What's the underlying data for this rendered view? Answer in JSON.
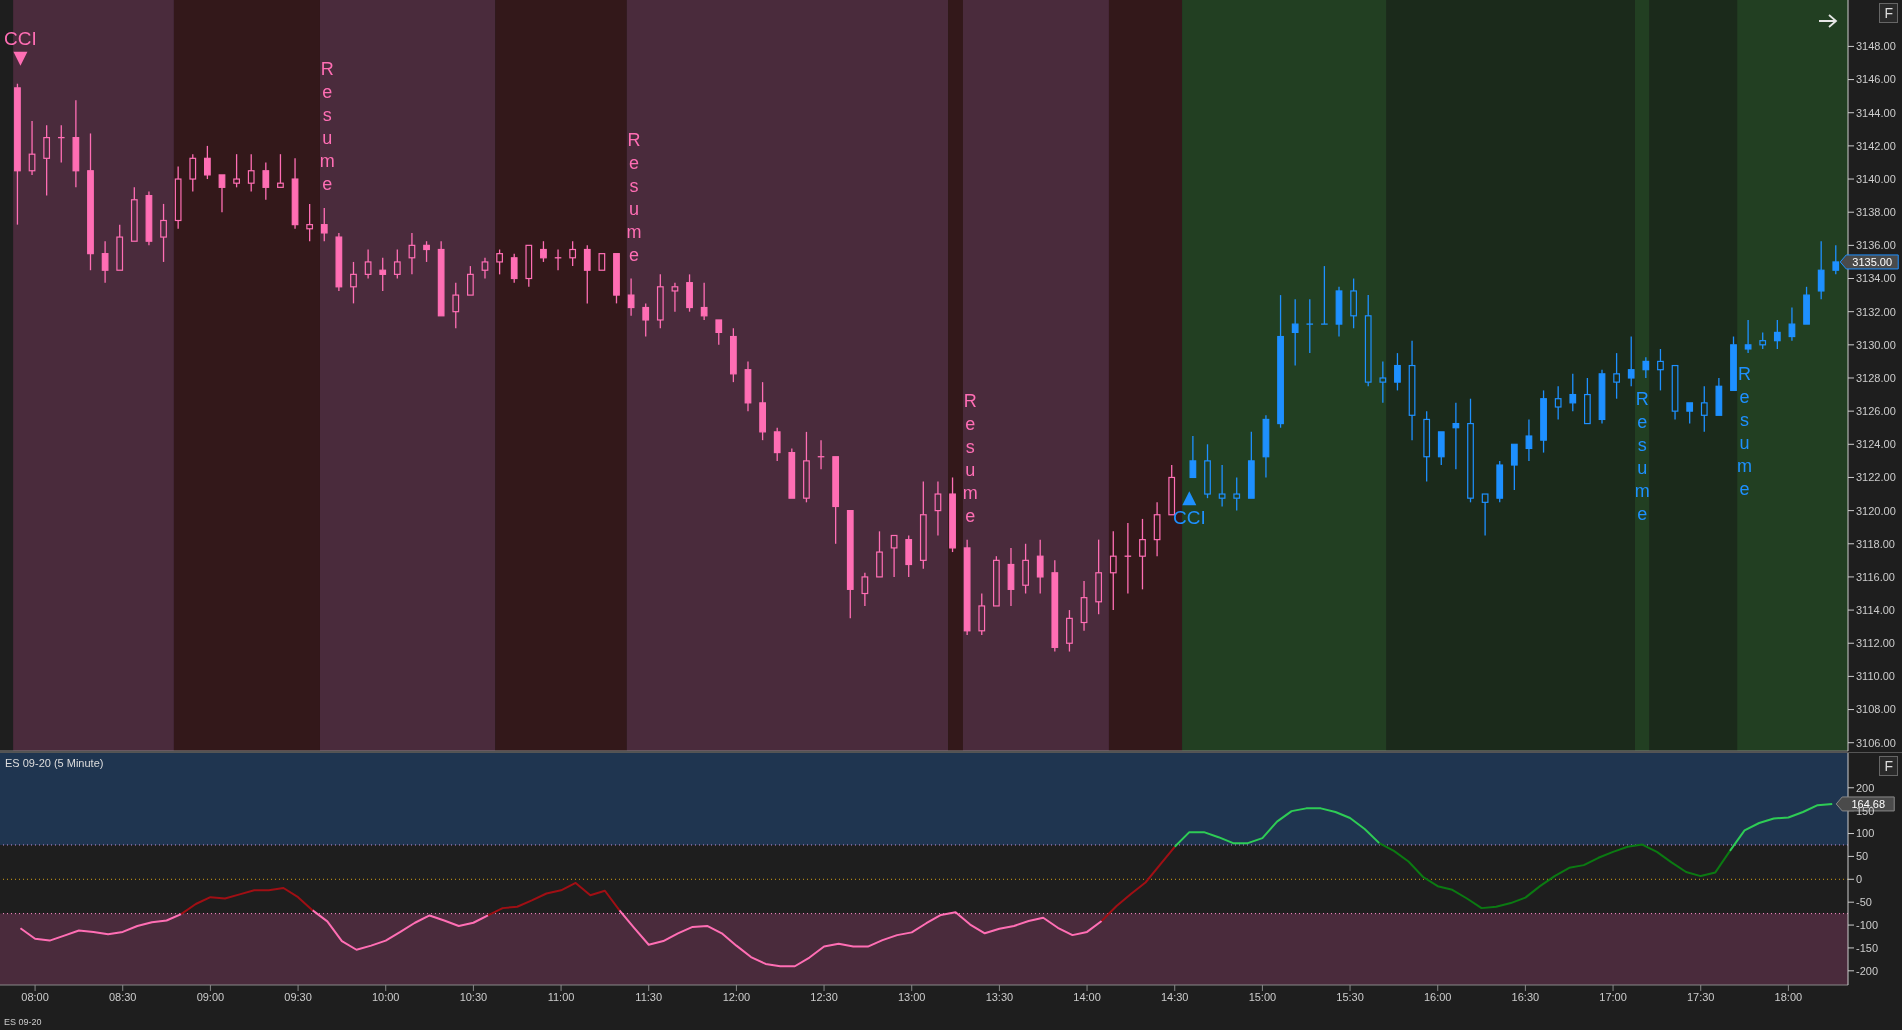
{
  "chart_data": [
    {
      "type": "candlestick",
      "xlim": [
        7.8,
        18.34
      ],
      "ylim": [
        3105.5,
        3150.8
      ],
      "tick_labels": "y",
      "yticks": [
        {
          "value": 3106,
          "label": "3106.00"
        },
        {
          "value": 3108,
          "label": "3108.00"
        },
        {
          "value": 3110,
          "label": "3110.00"
        },
        {
          "value": 3112,
          "label": "3112.00"
        },
        {
          "value": 3114,
          "label": "3114.00"
        },
        {
          "value": 3116,
          "label": "3116.00"
        },
        {
          "value": 3118,
          "label": "3118.00"
        },
        {
          "value": 3120,
          "label": "3120.00"
        },
        {
          "value": 3122,
          "label": "3122.00"
        },
        {
          "value": 3124,
          "label": "3124.00"
        },
        {
          "value": 3126,
          "label": "3126.00"
        },
        {
          "value": 3128,
          "label": "3128.00"
        },
        {
          "value": 3130,
          "label": "3130.00"
        },
        {
          "value": 3132,
          "label": "3132.00"
        },
        {
          "value": 3134,
          "label": "3134.00"
        },
        {
          "value": 3136,
          "label": "3136.00"
        },
        {
          "value": 3138,
          "label": "3138.00"
        },
        {
          "value": 3140,
          "label": "3140.00"
        },
        {
          "value": 3142,
          "label": "3142.00"
        },
        {
          "value": 3144,
          "label": "3144.00"
        },
        {
          "value": 3146,
          "label": "3146.00"
        },
        {
          "value": 3148,
          "label": "3148.00"
        }
      ],
      "bands": [
        {
          "axis": "x",
          "from": 7.875,
          "to": 8.792,
          "color": "#4a2b3c"
        },
        {
          "axis": "x",
          "from": 8.792,
          "to": 9.625,
          "color": "#33181a"
        },
        {
          "axis": "x",
          "from": 9.625,
          "to": 10.625,
          "color": "#4a2b3c"
        },
        {
          "axis": "x",
          "from": 10.625,
          "to": 11.375,
          "color": "#33181a"
        },
        {
          "axis": "x",
          "from": 11.375,
          "to": 13.208,
          "color": "#4a2b3c"
        },
        {
          "axis": "x",
          "from": 13.208,
          "to": 13.292,
          "color": "#33181a"
        },
        {
          "axis": "x",
          "from": 13.292,
          "to": 14.125,
          "color": "#4a2b3c"
        },
        {
          "axis": "x",
          "from": 14.125,
          "to": 14.542,
          "color": "#33181a"
        },
        {
          "axis": "x",
          "from": 14.542,
          "to": 15.708,
          "color": "#223f22"
        },
        {
          "axis": "x",
          "from": 15.708,
          "to": 17.125,
          "color": "#1b2a1b"
        },
        {
          "axis": "x",
          "from": 17.125,
          "to": 17.208,
          "color": "#223f22"
        },
        {
          "axis": "x",
          "from": 17.208,
          "to": 17.708,
          "color": "#1b2a1b"
        },
        {
          "axis": "x",
          "from": 17.708,
          "to": 18.34,
          "color": "#223f22"
        }
      ],
      "annotations": [
        "F"
      ],
      "series": [
        {
          "color": "#ff6eb4",
          "x": [
            7.9167,
            8,
            8.0833,
            8.1667,
            8.25,
            8.3333,
            8.4167,
            8.5,
            8.5833,
            8.6667,
            8.75,
            8.8333,
            8.9167,
            9,
            9.0833,
            9.1667,
            9.25,
            9.3333,
            9.4167,
            9.5,
            9.5833,
            9.6667,
            9.75,
            9.8333,
            9.9167,
            10,
            10.0833,
            10.1667,
            10.25,
            10.3333,
            10.4167,
            10.5,
            10.5833,
            10.6667,
            10.75,
            10.8333,
            10.9167,
            11,
            11.0833,
            11.1667,
            11.25,
            11.3333,
            11.4167,
            11.5,
            11.5833,
            11.6667,
            11.75,
            11.8333,
            11.9167,
            12,
            12.0833,
            12.1667,
            12.25,
            12.3333,
            12.4167,
            12.5,
            12.5833,
            12.6667,
            12.75,
            12.8333,
            12.9167,
            13,
            13.0833,
            13.1667,
            13.25,
            13.3333,
            13.4167,
            13.5,
            13.5833,
            13.6667,
            13.75,
            13.8333,
            13.9167,
            14,
            14.0833,
            14.1667,
            14.25,
            14.3333,
            14.4167,
            14.5
          ],
          "ohlc": [
            [
              3145.5,
              3145.75,
              3137.25,
              3140.5
            ],
            [
              3140.5,
              3143.5,
              3140.25,
              3141.5
            ],
            [
              3141.25,
              3143.25,
              3139,
              3142.5
            ],
            [
              3142.5,
              3143.25,
              3141,
              3142.5
            ],
            [
              3142.5,
              3144.75,
              3139.5,
              3140.5
            ],
            [
              3140.5,
              3142.75,
              3134.5,
              3135.5
            ],
            [
              3135.5,
              3136.25,
              3133.75,
              3134.5
            ],
            [
              3134.5,
              3137.25,
              3134.5,
              3136.5
            ],
            [
              3136.25,
              3139.5,
              3136.25,
              3138.75
            ],
            [
              3139,
              3139.25,
              3136,
              3136.25
            ],
            [
              3136.5,
              3138.5,
              3135,
              3137.5
            ],
            [
              3137.5,
              3140.75,
              3137,
              3140
            ],
            [
              3140,
              3141.5,
              3139.25,
              3141.25
            ],
            [
              3141.25,
              3142,
              3140,
              3140.25
            ],
            [
              3140.25,
              3140.25,
              3138,
              3139.5
            ],
            [
              3139.75,
              3141.5,
              3139.5,
              3140
            ],
            [
              3139.75,
              3141.5,
              3139.25,
              3140.5
            ],
            [
              3140.5,
              3141,
              3138.75,
              3139.5
            ],
            [
              3139.5,
              3141.5,
              3139.5,
              3139.75
            ],
            [
              3140,
              3141.25,
              3137,
              3137.25
            ],
            [
              3137,
              3138.5,
              3136.25,
              3137.25
            ],
            [
              3137.25,
              3138.25,
              3136.25,
              3136.75
            ],
            [
              3136.5,
              3136.75,
              3133.25,
              3133.5
            ],
            [
              3133.5,
              3135,
              3132.5,
              3134.25
            ],
            [
              3134.25,
              3135.75,
              3134,
              3135
            ],
            [
              3134.5,
              3135.25,
              3133.25,
              3134.25
            ],
            [
              3134.25,
              3135.75,
              3134,
              3135
            ],
            [
              3135.25,
              3136.75,
              3134.25,
              3136
            ],
            [
              3136,
              3136.25,
              3135,
              3135.75
            ],
            [
              3135.75,
              3136.25,
              3131.75,
              3131.75
            ],
            [
              3132,
              3133.75,
              3131,
              3133
            ],
            [
              3133,
              3134.75,
              3133,
              3134.25
            ],
            [
              3134.5,
              3135.25,
              3134,
              3135
            ],
            [
              3135,
              3135.75,
              3134.25,
              3135.5
            ],
            [
              3135.25,
              3135.5,
              3133.75,
              3134
            ],
            [
              3134,
              3136,
              3133.5,
              3136
            ],
            [
              3135.75,
              3136.25,
              3135,
              3135.25
            ],
            [
              3135.25,
              3135.75,
              3134.5,
              3135.25
            ],
            [
              3135.25,
              3136.25,
              3134.75,
              3135.75
            ],
            [
              3135.75,
              3136,
              3132.5,
              3134.5
            ],
            [
              3134.5,
              3135.5,
              3134.5,
              3135.5
            ],
            [
              3135.5,
              3135.5,
              3132.5,
              3133
            ],
            [
              3133,
              3134,
              3131.75,
              3132.25
            ],
            [
              3132.25,
              3132.5,
              3130.5,
              3131.5
            ],
            [
              3131.5,
              3134.25,
              3131,
              3133.5
            ],
            [
              3133.25,
              3133.75,
              3132,
              3133.5
            ],
            [
              3133.75,
              3134.25,
              3132,
              3132.25
            ],
            [
              3132.25,
              3133.75,
              3131.5,
              3131.75
            ],
            [
              3131.5,
              3131.5,
              3130,
              3130.75
            ],
            [
              3130.5,
              3131,
              3127.75,
              3128.25
            ],
            [
              3128.5,
              3129,
              3126,
              3126.5
            ],
            [
              3126.5,
              3127.75,
              3124.25,
              3124.75
            ],
            [
              3124.75,
              3125,
              3123,
              3123.5
            ],
            [
              3123.5,
              3123.75,
              3120.75,
              3120.75
            ],
            [
              3120.75,
              3124.75,
              3120.5,
              3123
            ],
            [
              3123.25,
              3124.25,
              3122.5,
              3123.25
            ],
            [
              3123.25,
              3123.25,
              3118,
              3120.25
            ],
            [
              3120,
              3120,
              3113.5,
              3115.25
            ],
            [
              3115,
              3116.25,
              3114.25,
              3116
            ],
            [
              3116,
              3118.75,
              3116,
              3117.5
            ],
            [
              3117.75,
              3118.5,
              3116,
              3118.5
            ],
            [
              3118.25,
              3118.5,
              3116,
              3116.75
            ],
            [
              3117,
              3121.75,
              3116.5,
              3119.75
            ],
            [
              3120,
              3121.75,
              3118.5,
              3121
            ],
            [
              3121,
              3122,
              3117.5,
              3117.75
            ],
            [
              3117.75,
              3118.25,
              3112.5,
              3112.75
            ],
            [
              3112.75,
              3115,
              3112.5,
              3114.25
            ],
            [
              3114.25,
              3117.25,
              3114.25,
              3117
            ],
            [
              3116.75,
              3117.75,
              3114.25,
              3115.25
            ],
            [
              3115.5,
              3118,
              3115,
              3117
            ],
            [
              3117.25,
              3118.25,
              3115,
              3116
            ],
            [
              3116.25,
              3117,
              3111.5,
              3111.75
            ],
            [
              3112,
              3114,
              3111.5,
              3113.5
            ],
            [
              3113.25,
              3115.75,
              3112.75,
              3114.75
            ],
            [
              3114.5,
              3118.25,
              3113.75,
              3116.25
            ],
            [
              3116.25,
              3118.75,
              3114,
              3117.25
            ],
            [
              3117.25,
              3119.25,
              3115,
              3117.25
            ],
            [
              3117.25,
              3119.5,
              3115.25,
              3118.25
            ],
            [
              3118.25,
              3120.5,
              3117.25,
              3119.75
            ],
            [
              3119.75,
              3122.75,
              3119.75,
              3122
            ]
          ],
          "value_labels": [
            null,
            null,
            null,
            null,
            null,
            null,
            null,
            null,
            null,
            null,
            null,
            null,
            null,
            null,
            null,
            null,
            null,
            null,
            null,
            null,
            null,
            "Resume",
            null,
            null,
            null,
            null,
            null,
            null,
            null,
            null,
            null,
            null,
            null,
            null,
            null,
            null,
            null,
            null,
            null,
            null,
            null,
            null,
            "Resume",
            null,
            null,
            null,
            null,
            null,
            null,
            null,
            null,
            null,
            null,
            null,
            null,
            null,
            null,
            null,
            null,
            null,
            null,
            null,
            null,
            null,
            null,
            "Resume",
            null,
            null,
            null,
            null,
            null,
            null,
            null,
            null,
            null,
            null,
            null,
            null,
            null,
            null
          ]
        },
        {
          "color": "#1e90ff",
          "x": [
            14.5833,
            14.6667,
            14.75,
            14.8333,
            14.9167,
            15,
            15.0833,
            15.1667,
            15.25,
            15.3333,
            15.4167,
            15.5,
            15.5833,
            15.6667,
            15.75,
            15.8333,
            15.9167,
            16,
            16.0833,
            16.1667,
            16.25,
            16.3333,
            16.4167,
            16.5,
            16.5833,
            16.6667,
            16.75,
            16.8333,
            16.9167,
            17,
            17.0833,
            17.1667,
            17.25,
            17.3333,
            17.4167,
            17.5,
            17.5833,
            17.6667,
            17.75,
            17.8333,
            17.9167,
            18,
            18.0833,
            18.1667,
            18.25
          ],
          "ohlc": [
            [
              3122,
              3124.5,
              3122,
              3123
            ],
            [
              3123,
              3124,
              3120.75,
              3121
            ],
            [
              3121,
              3122.75,
              3120.25,
              3120.75
            ],
            [
              3121,
              3122,
              3120,
              3120.75
            ],
            [
              3120.75,
              3124.75,
              3120.75,
              3123
            ],
            [
              3123.25,
              3125.75,
              3122,
              3125.5
            ],
            [
              3125.25,
              3133,
              3125,
              3130.5
            ],
            [
              3130.75,
              3132.75,
              3128.75,
              3131.25
            ],
            [
              3131.25,
              3132.75,
              3129.5,
              3131.25
            ],
            [
              3131.25,
              3134.75,
              3131.25,
              3131.25
            ],
            [
              3131.25,
              3133.5,
              3130.5,
              3133.25
            ],
            [
              3133.25,
              3134,
              3131,
              3131.75
            ],
            [
              3131.75,
              3133,
              3127.5,
              3127.75
            ],
            [
              3128,
              3129,
              3126.5,
              3127.75
            ],
            [
              3127.75,
              3129.5,
              3127.25,
              3128.75
            ],
            [
              3128.75,
              3130.25,
              3124.25,
              3125.75
            ],
            [
              3125.5,
              3126,
              3121.75,
              3123.25
            ],
            [
              3123.25,
              3124.75,
              3122.75,
              3124.75
            ],
            [
              3125,
              3126.5,
              3122.5,
              3125.25
            ],
            [
              3125.25,
              3126.75,
              3120.5,
              3120.75
            ],
            [
              3121,
              3121,
              3118.5,
              3120.5
            ],
            [
              3120.75,
              3123,
              3120.5,
              3122.75
            ],
            [
              3122.75,
              3124,
              3121.25,
              3124
            ],
            [
              3123.75,
              3125.5,
              3123,
              3124.5
            ],
            [
              3124.25,
              3127.25,
              3123.5,
              3126.75
            ],
            [
              3126.75,
              3127.5,
              3125.5,
              3126.25
            ],
            [
              3126.5,
              3128.25,
              3126,
              3127
            ],
            [
              3127,
              3128,
              3125.25,
              3125.25
            ],
            [
              3125.5,
              3128.5,
              3125.25,
              3128.25
            ],
            [
              3128.25,
              3129.5,
              3126.75,
              3127.75
            ],
            [
              3128,
              3130.5,
              3127.5,
              3128.5
            ],
            [
              3128.5,
              3129.25,
              3128,
              3129
            ],
            [
              3129,
              3129.75,
              3127.25,
              3128.5
            ],
            [
              3128.75,
              3128.75,
              3125.5,
              3126
            ],
            [
              3126,
              3126.5,
              3125.25,
              3126.5
            ],
            [
              3126.5,
              3127.5,
              3124.75,
              3125.75
            ],
            [
              3125.75,
              3128,
              3125.75,
              3127.5
            ],
            [
              3127.25,
              3130.5,
              3127.25,
              3130
            ],
            [
              3129.75,
              3131.5,
              3129.5,
              3130
            ],
            [
              3130.25,
              3130.75,
              3129.75,
              3130
            ],
            [
              3130.25,
              3131.5,
              3129.75,
              3130.75
            ],
            [
              3130.5,
              3132.25,
              3130.25,
              3131.25
            ],
            [
              3131.25,
              3133.5,
              3131.25,
              3133
            ],
            [
              3133.25,
              3136.25,
              3132.75,
              3134.5
            ],
            [
              3134.5,
              3136,
              3134.25,
              3135
            ]
          ],
          "value_labels": [
            null,
            null,
            null,
            null,
            null,
            null,
            null,
            null,
            null,
            null,
            null,
            null,
            null,
            null,
            null,
            null,
            null,
            null,
            null,
            null,
            null,
            null,
            null,
            null,
            null,
            null,
            null,
            null,
            null,
            null,
            null,
            "Resume",
            null,
            null,
            null,
            null,
            null,
            null,
            "Resume",
            null,
            null,
            null,
            null,
            null,
            "3135.00"
          ]
        },
        {
          "type": "scatter",
          "color": "#ff6eb4",
          "marker": "triangle",
          "x": [
            7.9167
          ],
          "values": [
            3147.25
          ],
          "value_labels": [
            "CCI"
          ]
        },
        {
          "type": "scatter",
          "color": "#1e90ff",
          "marker": "triangle",
          "x": [
            14.5833
          ],
          "values": [
            3120.75
          ],
          "value_labels": [
            "CCI"
          ]
        }
      ]
    },
    {
      "type": "line",
      "title": "ES 09-20 (5 Minute)",
      "xlabel": "ES 09-20",
      "xlim": [
        7.8,
        18.34
      ],
      "ylim": [
        -231,
        276
      ],
      "xticks": [
        {
          "value": 8,
          "label": "08:00"
        },
        {
          "value": 8.5,
          "label": "08:30"
        },
        {
          "value": 9,
          "label": "09:00"
        },
        {
          "value": 9.5,
          "label": "09:30"
        },
        {
          "value": 10,
          "label": "10:00"
        },
        {
          "value": 10.5,
          "label": "10:30"
        },
        {
          "value": 11,
          "label": "11:00"
        },
        {
          "value": 11.5,
          "label": "11:30"
        },
        {
          "value": 12,
          "label": "12:00"
        },
        {
          "value": 12.5,
          "label": "12:30"
        },
        {
          "value": 13,
          "label": "13:00"
        },
        {
          "value": 13.5,
          "label": "13:30"
        },
        {
          "value": 14,
          "label": "14:00"
        },
        {
          "value": 14.5,
          "label": "14:30"
        },
        {
          "value": 15,
          "label": "15:00"
        },
        {
          "value": 15.5,
          "label": "15:30"
        },
        {
          "value": 16,
          "label": "16:00"
        },
        {
          "value": 16.5,
          "label": "16:30"
        },
        {
          "value": 17,
          "label": "17:00"
        },
        {
          "value": 17.5,
          "label": "17:30"
        },
        {
          "value": 18,
          "label": "18:00"
        }
      ],
      "yticks": [
        -200,
        -150,
        -100,
        -50,
        0,
        50,
        100,
        150,
        200
      ],
      "bands": [
        {
          "axis": "y",
          "from": 75,
          "to": 276,
          "color": "#1f3550"
        },
        {
          "axis": "y",
          "from": -231,
          "to": -75,
          "color": "#4a2b3c"
        }
      ],
      "ref_lines": [
        {
          "axis": "y",
          "value": 75,
          "color": "#c890d8",
          "line_style": "dotted"
        },
        {
          "axis": "y",
          "value": 0,
          "color": "#d4a017",
          "line_style": "dotted"
        },
        {
          "axis": "y",
          "value": -75,
          "color": "#ff8fc8",
          "line_style": "dotted"
        }
      ],
      "annotations": [
        "F"
      ],
      "series": [
        {
          "color": "#ff6eb4",
          "x": [
            7.9167,
            8,
            8.0833,
            8.1667,
            8.25,
            8.3333,
            8.4167,
            8.5,
            8.5833,
            8.6667,
            8.75,
            8.8333
          ],
          "values": [
            -107,
            -130,
            -134,
            -123,
            -112,
            -115,
            -120,
            -115,
            -102,
            -94,
            -90,
            -76
          ]
        },
        {
          "color": "#a00f14",
          "x": [
            8.8333,
            8.9167,
            9,
            9.0833,
            9.1667,
            9.25,
            9.3333,
            9.4167,
            9.5,
            9.5833
          ],
          "values": [
            -76,
            -54,
            -39,
            -42,
            -33,
            -24,
            -24,
            -19,
            -39,
            -68
          ]
        },
        {
          "color": "#ff6eb4",
          "x": [
            9.5833,
            9.6667,
            9.75,
            9.8333,
            9.9167,
            10,
            10.0833,
            10.1667,
            10.25,
            10.3333,
            10.4167,
            10.5,
            10.5833
          ],
          "values": [
            -68,
            -92,
            -135,
            -154,
            -145,
            -134,
            -115,
            -95,
            -79,
            -90,
            -102,
            -95,
            -79
          ]
        },
        {
          "color": "#a00f14",
          "x": [
            10.5833,
            10.6667,
            10.75,
            10.8333,
            10.9167,
            11,
            11.0833,
            11.1667,
            11.25,
            11.3333
          ],
          "values": [
            -79,
            -63,
            -60,
            -46,
            -31,
            -24,
            -8,
            -35,
            -25,
            -68
          ]
        },
        {
          "color": "#ff6eb4",
          "x": [
            11.3333,
            11.4167,
            11.5,
            11.5833,
            11.6667,
            11.75,
            11.8333,
            11.9167,
            12,
            12.0833,
            12.1667,
            12.25,
            12.3333,
            12.4167,
            12.5,
            12.5833,
            12.6667,
            12.75,
            12.8333,
            12.9167,
            13,
            13.0833,
            13.1667,
            13.25,
            13.3333,
            13.4167,
            13.5,
            13.5833,
            13.6667,
            13.75,
            13.8333,
            13.9167,
            14,
            14.0833
          ],
          "values": [
            -68,
            -106,
            -143,
            -135,
            -118,
            -104,
            -102,
            -118,
            -145,
            -170,
            -185,
            -190,
            -190,
            -171,
            -147,
            -141,
            -147,
            -147,
            -133,
            -122,
            -116,
            -96,
            -78,
            -72,
            -99,
            -118,
            -108,
            -102,
            -91,
            -84,
            -106,
            -122,
            -115,
            -91
          ]
        },
        {
          "color": "#a00f14",
          "x": [
            14.0833,
            14.1667,
            14.25,
            14.3333,
            14.4167,
            14.5
          ],
          "values": [
            -91,
            -59,
            -32,
            -7,
            32,
            71
          ]
        },
        {
          "color": "#2ecc55",
          "x": [
            14.5,
            14.5833,
            14.6667,
            14.75,
            14.8333,
            14.9167,
            15,
            15.0833,
            15.1667,
            15.25,
            15.3333,
            15.4167,
            15.5,
            15.5833,
            15.6667
          ],
          "values": [
            71,
            103,
            103,
            92,
            79,
            79,
            90,
            126,
            149,
            155,
            155,
            147,
            134,
            110,
            79
          ]
        },
        {
          "color": "#0b7a12",
          "x": [
            15.6667,
            15.75,
            15.8333,
            15.9167,
            16,
            16.0833,
            16.1667,
            16.25,
            16.3333,
            16.4167,
            16.5,
            16.5833,
            16.6667,
            16.75,
            16.8333,
            16.9167,
            17,
            17.0833,
            17.1667,
            17.25,
            17.3333,
            17.4167,
            17.5,
            17.5833,
            17.6667
          ],
          "values": [
            79,
            62,
            39,
            5,
            -15,
            -23,
            -42,
            -63,
            -60,
            -52,
            -40,
            -15,
            7,
            25,
            31,
            47,
            60,
            71,
            76,
            60,
            37,
            16,
            7,
            15,
            62
          ]
        },
        {
          "color": "#2ecc55",
          "x": [
            17.6667,
            17.75,
            17.8333,
            17.9167,
            18,
            18.0833,
            18.1667,
            18.25
          ],
          "values": [
            62,
            107,
            123,
            133,
            135,
            147,
            162,
            164.68
          ],
          "value_labels": [
            null,
            null,
            null,
            null,
            null,
            null,
            null,
            "164.68"
          ]
        }
      ]
    }
  ]
}
